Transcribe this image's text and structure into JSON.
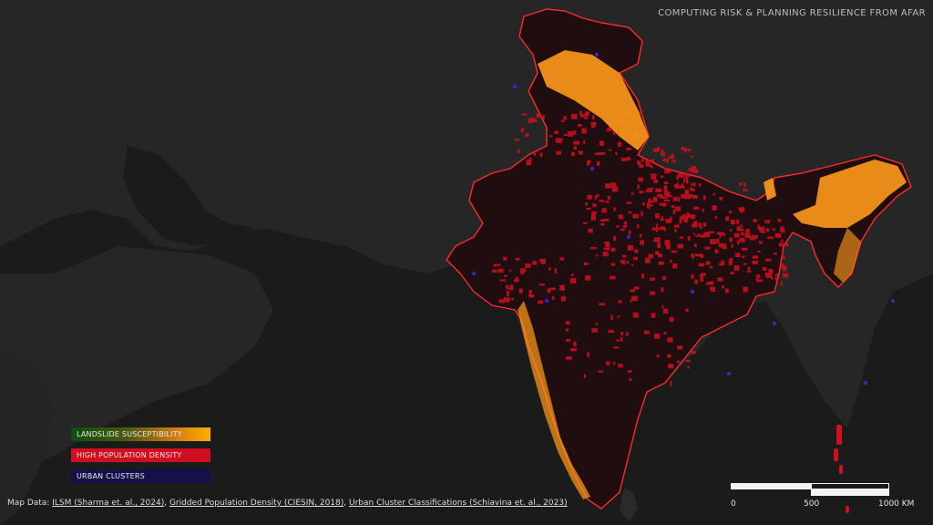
{
  "header": {
    "title": "COMPUTING RISK & PLANNING RESILIENCE FROM AFAR"
  },
  "legend": {
    "items": [
      {
        "label": "LANDSLIDE SUSCEPTIBILITY",
        "color": "#ffb000"
      },
      {
        "label": "HIGH POPULATION DENSITY",
        "color": "#d10f1f"
      },
      {
        "label": "URBAN CLUSTERS",
        "color": "#15104a"
      }
    ]
  },
  "source": {
    "prefix": "Map Data:",
    "links": [
      "ILSM (Sharma et. al., 2024)",
      "Gridded Population Density (CIESIN, 2018)",
      "Urban Cluster Classifications (Schiavina et. al., 2023)"
    ],
    "separator": ","
  },
  "scalebar": {
    "labels": [
      "0",
      "500",
      "1000 KM"
    ]
  },
  "colors": {
    "land": "#282828",
    "sea": "#1b1b1b",
    "border": "#ff2a2a",
    "landslide": "#ff9a1a"
  }
}
